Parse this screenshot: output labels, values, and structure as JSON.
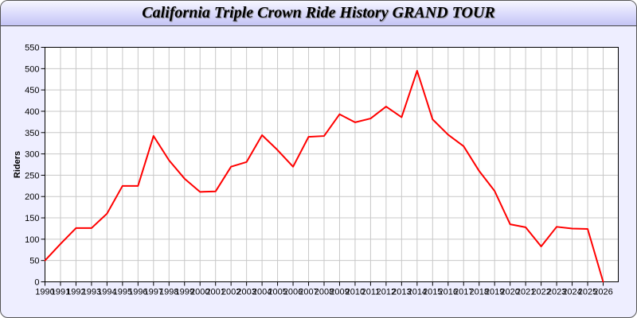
{
  "chart_data": {
    "type": "line",
    "title": "California Triple Crown Ride History GRAND TOUR",
    "xlabel": "",
    "ylabel": "Riders",
    "xlim": [
      1990,
      2027
    ],
    "ylim": [
      0,
      550
    ],
    "yticks": [
      0,
      50,
      100,
      150,
      200,
      250,
      300,
      350,
      400,
      450,
      500,
      550
    ],
    "grid": true,
    "series": [
      {
        "color": "#ff0000",
        "x": [
          1990,
          1991,
          1992,
          1993,
          1994,
          1995,
          1996,
          1997,
          1998,
          1999,
          2000,
          2001,
          2002,
          2003,
          2004,
          2005,
          2006,
          2007,
          2008,
          2009,
          2010,
          2011,
          2012,
          2013,
          2014,
          2015,
          2016,
          2017,
          2018,
          2019,
          2020,
          2021,
          2022,
          2023,
          2024,
          2025,
          2026
        ],
        "values": [
          50,
          89,
          126,
          126,
          160,
          225,
          225,
          342,
          285,
          242,
          211,
          212,
          270,
          281,
          344,
          309,
          270,
          340,
          342,
          393,
          374,
          383,
          411,
          386,
          495,
          381,
          345,
          318,
          260,
          213,
          135,
          128,
          83,
          129,
          125,
          124,
          0
        ]
      }
    ]
  }
}
